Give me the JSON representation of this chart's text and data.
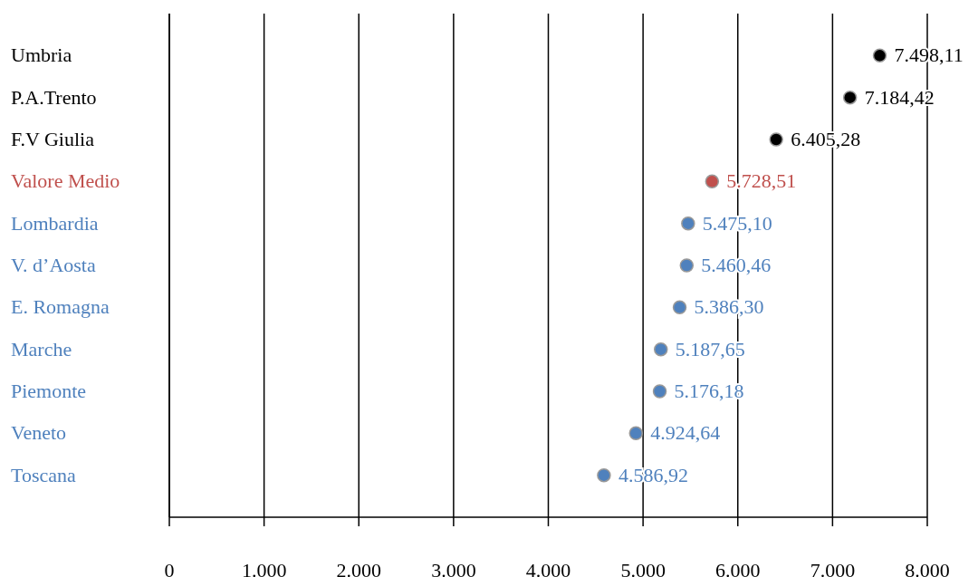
{
  "chart_data": {
    "type": "scatter",
    "orientation": "horizontal",
    "categories": [
      "Umbria",
      "P.A.Trento",
      "F.V Giulia",
      "Valore Medio",
      "Lombardia",
      "V. d’Aosta",
      "E. Romagna",
      "Marche",
      "Piemonte",
      "Veneto",
      "Toscana"
    ],
    "values": [
      7498.11,
      7184.42,
      6405.28,
      5728.51,
      5475.1,
      5460.46,
      5386.3,
      5187.65,
      5176.18,
      4924.64,
      4586.92
    ],
    "value_labels": [
      "7.498,11",
      "7.184,42",
      "6.405,28",
      "5.728,51",
      "5.475,10",
      "5.460,46",
      "5.386,30",
      "5.187,65",
      "5.176,18",
      "4.924,64",
      "4.586,92"
    ],
    "colors": [
      "#000000",
      "#000000",
      "#000000",
      "#c0504d",
      "#4f81bd",
      "#4f81bd",
      "#4f81bd",
      "#4f81bd",
      "#4f81bd",
      "#4f81bd",
      "#4f81bd"
    ],
    "xlim": [
      0,
      8000
    ],
    "xticks": [
      {
        "value": 0,
        "label": "0"
      },
      {
        "value": 1000,
        "label": "1.000"
      },
      {
        "value": 2000,
        "label": "2.000"
      },
      {
        "value": 3000,
        "label": "3.000"
      },
      {
        "value": 4000,
        "label": "4.000"
      },
      {
        "value": 5000,
        "label": "5.000"
      },
      {
        "value": 6000,
        "label": "6.000"
      },
      {
        "value": 7000,
        "label": "7.000"
      },
      {
        "value": 8000,
        "label": "8.000"
      }
    ],
    "grid": "x",
    "marker": "circle"
  }
}
